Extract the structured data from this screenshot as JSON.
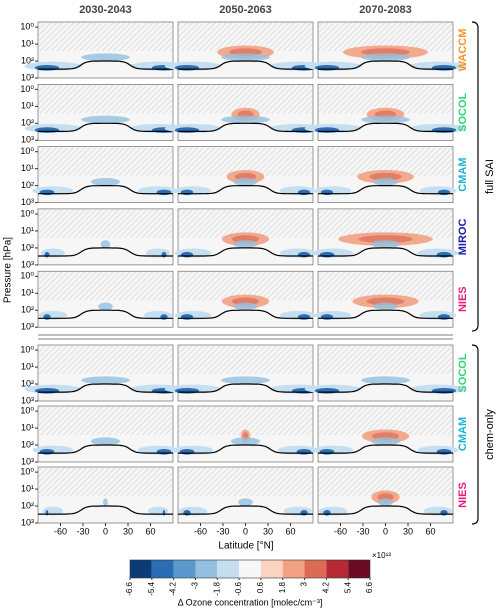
{
  "chart_data": {
    "type": "contour",
    "columns": [
      "2030-2043",
      "2050-2063",
      "2070-2083"
    ],
    "groups": [
      {
        "name": "full SAI",
        "models": [
          {
            "name": "WACCM",
            "color": "#f7941d"
          },
          {
            "name": "SOCOL",
            "color": "#2fd67a"
          },
          {
            "name": "CMAM",
            "color": "#1cb3d6"
          },
          {
            "name": "MIROC",
            "color": "#1c1ca8"
          },
          {
            "name": "NIES",
            "color": "#e8197f"
          }
        ]
      },
      {
        "name": "chem-only",
        "models": [
          {
            "name": "SOCOL",
            "color": "#2fd67a"
          },
          {
            "name": "CMAM",
            "color": "#1cb3d6"
          },
          {
            "name": "NIES",
            "color": "#e8197f"
          }
        ]
      }
    ],
    "xlabel": "Latitude [°N]",
    "ylabel": "Pressure [hPa]",
    "xlim": [
      -90,
      90
    ],
    "xticks": [
      -60,
      -30,
      0,
      30,
      60
    ],
    "ylim": [
      1000,
      0.5
    ],
    "log_y": true,
    "yticks": [
      {
        "value": 1,
        "label": "10⁰"
      },
      {
        "value": 10,
        "label": "10¹"
      },
      {
        "value": 100,
        "label": "10²"
      },
      {
        "value": 1000,
        "label": "10³"
      }
    ],
    "colorbar": {
      "label": "Δ Ozone concentration [molec/cm⁻³]",
      "scale_label": "×10¹³",
      "ticks": [
        -6.6,
        -5.4,
        -4.2,
        -3,
        -1.8,
        -0.6,
        0.6,
        1.8,
        3,
        4.2,
        5.4,
        6.6
      ],
      "colors": [
        "#0b3c78",
        "#2b6db3",
        "#5b98cc",
        "#93c0e0",
        "#c6dff0",
        "#f7f7f7",
        "#fbd3c0",
        "#f2a283",
        "#dc6b56",
        "#b62a33",
        "#6b0a23"
      ]
    }
  }
}
